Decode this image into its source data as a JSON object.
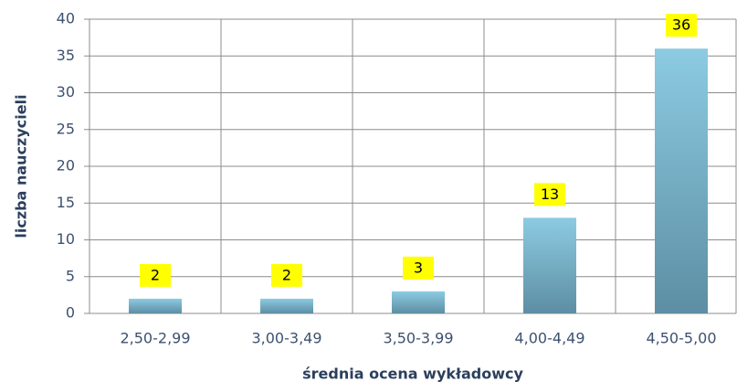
{
  "chart_data": {
    "type": "bar",
    "x_label": "średnia ocena wykładowcy",
    "y_label": "liczba nauczycieli",
    "categories": [
      "2,50-2,99",
      "3,00-3,49",
      "3,50-3,99",
      "4,00-4,49",
      "4,50-5,00"
    ],
    "values": [
      2,
      2,
      3,
      13,
      36
    ],
    "color": "#7fbcd4",
    "ylim": [
      0,
      40
    ],
    "yticks": [
      0,
      5,
      10,
      15,
      20,
      25,
      30,
      35,
      40
    ],
    "grid": true
  }
}
